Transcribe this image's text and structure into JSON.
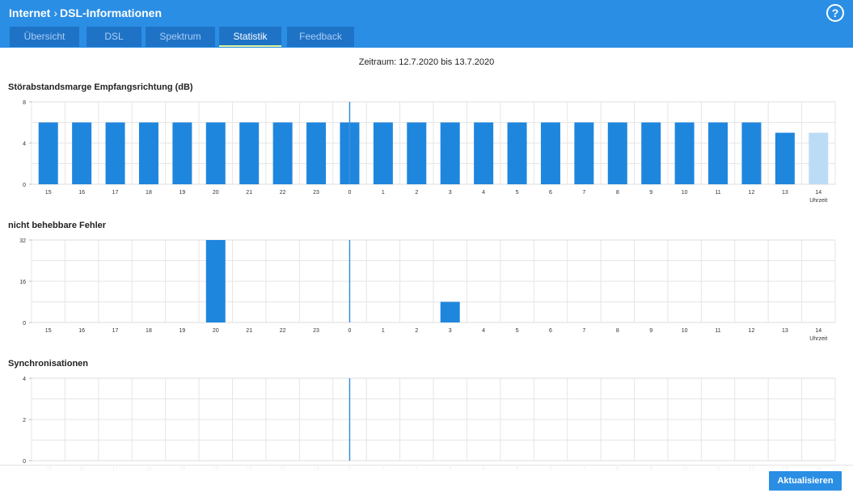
{
  "header": {
    "breadcrumb": [
      "Internet",
      "DSL-Informationen"
    ],
    "help_icon": "question-circle-icon",
    "help_label": "?"
  },
  "tabs": [
    {
      "label": "Übersicht",
      "active": false
    },
    {
      "label": "DSL",
      "active": false
    },
    {
      "label": "Spektrum",
      "active": false
    },
    {
      "label": "Statistik",
      "active": true
    },
    {
      "label": "Feedback",
      "active": false
    }
  ],
  "zeitraum": "Zeitraum: 12.7.2020 bis 13.7.2020",
  "colors": {
    "bar": "#1f86de",
    "bar_current": "#bcdcf5",
    "header": "#2a8ee4",
    "tab": "#1f73c6"
  },
  "chart_data": [
    {
      "type": "bar",
      "title": "Störabstandsmarge Empfangsrichtung (dB)",
      "categories": [
        "15",
        "16",
        "17",
        "18",
        "19",
        "20",
        "21",
        "22",
        "23",
        "0",
        "1",
        "2",
        "3",
        "4",
        "5",
        "6",
        "7",
        "8",
        "9",
        "10",
        "11",
        "12",
        "13",
        "14"
      ],
      "values": [
        6,
        6,
        6,
        6,
        6,
        6,
        6,
        6,
        6,
        6,
        6,
        6,
        6,
        6,
        6,
        6,
        6,
        6,
        6,
        6,
        6,
        6,
        5,
        5
      ],
      "highlight_last": true,
      "ylim": [
        0,
        8
      ],
      "yticks": [
        "0",
        "4",
        "8"
      ],
      "xlabel": "Uhrzeit",
      "grid": true
    },
    {
      "type": "bar",
      "title": "nicht behebbare Fehler",
      "categories": [
        "15",
        "16",
        "17",
        "18",
        "19",
        "20",
        "21",
        "22",
        "23",
        "0",
        "1",
        "2",
        "3",
        "4",
        "5",
        "6",
        "7",
        "8",
        "9",
        "10",
        "11",
        "12",
        "13",
        "14"
      ],
      "values": [
        0,
        0,
        0,
        0,
        0,
        32,
        0,
        0,
        0,
        0,
        0,
        0,
        8,
        0,
        0,
        0,
        0,
        0,
        0,
        0,
        0,
        0,
        0,
        0
      ],
      "highlight_last": false,
      "ylim": [
        0,
        32
      ],
      "yticks": [
        "0",
        "16",
        "32"
      ],
      "xlabel": "Uhrzeit",
      "grid": true
    },
    {
      "type": "bar",
      "title": "Synchronisationen",
      "categories": [
        "15",
        "16",
        "17",
        "18",
        "19",
        "20",
        "21",
        "22",
        "23",
        "0",
        "1",
        "2",
        "3",
        "4",
        "5",
        "6",
        "7",
        "8",
        "9",
        "10",
        "11",
        "12",
        "13",
        "14"
      ],
      "values": [
        0,
        0,
        0,
        0,
        0,
        0,
        0,
        0,
        0,
        0,
        0,
        0,
        0,
        0,
        0,
        0,
        0,
        0,
        0,
        0,
        0,
        0,
        0,
        0
      ],
      "highlight_last": false,
      "ylim": [
        0,
        4
      ],
      "yticks": [
        "0",
        "2",
        "4"
      ],
      "xlabel": "",
      "grid": true
    }
  ],
  "footer": {
    "refresh_label": "Aktualisieren"
  }
}
